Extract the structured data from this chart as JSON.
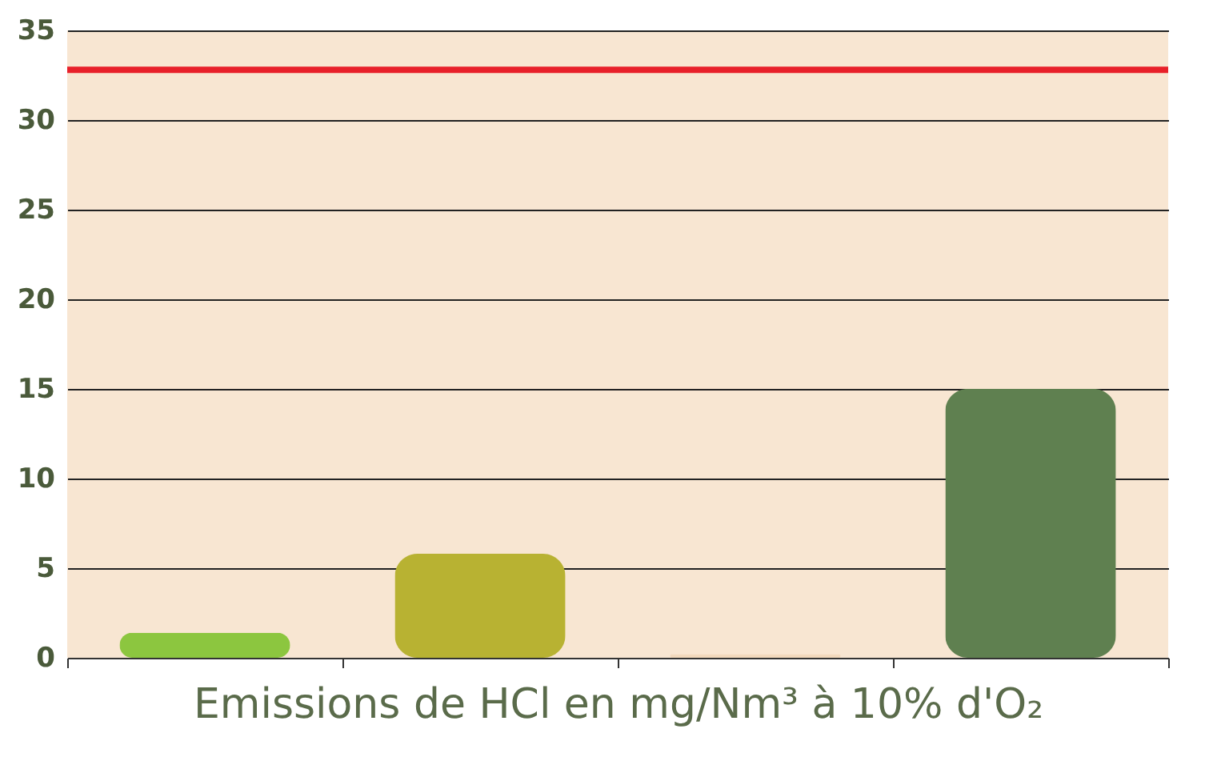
{
  "chart_data": {
    "type": "bar",
    "xlabel": "Emissions de HCl en mg/Nm³ à 10% d'O₂",
    "categories": [
      null,
      null,
      null,
      null
    ],
    "values": [
      1.4,
      5.8,
      0.2,
      15
    ],
    "colors": [
      "#8cc63f",
      "#b8b232",
      "#f2d9bd",
      "#5f8050"
    ],
    "ylim": [
      0,
      35
    ],
    "yticks": [
      0,
      5,
      10,
      15,
      20,
      25,
      30,
      35
    ],
    "grid": "y",
    "ref_lines": [
      {
        "axis": "y",
        "value": 32.8,
        "color": "#e8202a"
      }
    ]
  }
}
